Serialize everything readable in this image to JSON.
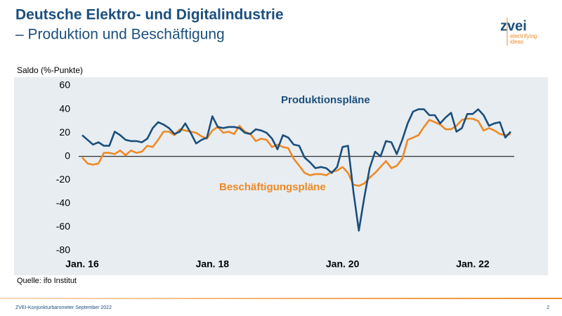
{
  "header": {
    "title": [
      "Deutsche Elektro- und Digitalindustrie",
      "– Produktion und Beschäftigung"
    ]
  },
  "logo": {
    "name": "zvei",
    "tagline": [
      "electrifying",
      "ideas"
    ]
  },
  "chart_data": {
    "type": "line",
    "ylabel": "Saldo (%-Punkte)",
    "source": "Quelle: ifo Institut",
    "categories": [
      "Jan. 16",
      null,
      null,
      null,
      null,
      null,
      null,
      null,
      null,
      null,
      null,
      null,
      null,
      null,
      null,
      null,
      null,
      null,
      null,
      null,
      null,
      null,
      null,
      null,
      "Jan. 18",
      null,
      null,
      null,
      null,
      null,
      null,
      null,
      null,
      null,
      null,
      null,
      null,
      null,
      null,
      null,
      null,
      null,
      null,
      null,
      null,
      null,
      null,
      null,
      "Jan. 20",
      null,
      null,
      null,
      null,
      null,
      null,
      null,
      null,
      null,
      null,
      null,
      null,
      null,
      null,
      null,
      null,
      null,
      null,
      null,
      null,
      null,
      null,
      null,
      "Jan. 22",
      null,
      null,
      null,
      null,
      null,
      null,
      null
    ],
    "series": [
      {
        "name": "Produktionspläne",
        "color": "#1b4f7c",
        "values": [
          18,
          14,
          10,
          12,
          9,
          9,
          21,
          18,
          14,
          13,
          13,
          12,
          15,
          24,
          29,
          27,
          24,
          19,
          21,
          28,
          20,
          11,
          14,
          16,
          34,
          25,
          24,
          25,
          25,
          24,
          20,
          19,
          23,
          22,
          20,
          15,
          6,
          18,
          16,
          10,
          9,
          -1,
          -5,
          -10,
          -9,
          -10,
          -14,
          -9,
          8,
          9,
          -30,
          -63,
          -35,
          -10,
          4,
          0,
          13,
          12,
          2,
          14,
          28,
          38,
          40,
          40,
          35,
          35,
          28,
          33,
          37,
          21,
          24,
          36,
          36,
          40,
          35,
          26,
          28,
          29,
          16,
          21
        ]
      },
      {
        "name": "Beschäftigungspläne",
        "color": "#ee8a26",
        "values": [
          -1,
          -6,
          -7,
          -6,
          3,
          3,
          2,
          5,
          1,
          5,
          3,
          4,
          9,
          8,
          14,
          21,
          21,
          18,
          23,
          22,
          21,
          20,
          17,
          15,
          22,
          25,
          20,
          21,
          19,
          26,
          21,
          19,
          13,
          15,
          14,
          8,
          10,
          8,
          7,
          -2,
          -8,
          -14,
          -16,
          -15,
          -15,
          -16,
          -13,
          -12,
          -9,
          -14,
          -24,
          -25,
          -23,
          -18,
          -14,
          -9,
          -4,
          -10,
          -8,
          -2,
          14,
          16,
          18,
          25,
          31,
          29,
          27,
          23,
          23,
          26,
          31,
          32,
          32,
          30,
          22,
          24,
          22,
          19,
          18,
          19
        ]
      }
    ],
    "ylim": [
      -80,
      60
    ],
    "yticks": [
      -80,
      -60,
      -40,
      -20,
      0,
      20,
      40,
      60
    ],
    "grid": false
  },
  "footer": {
    "text": "ZVEI-Konjunkturbarometer September 2022",
    "page": "2"
  }
}
